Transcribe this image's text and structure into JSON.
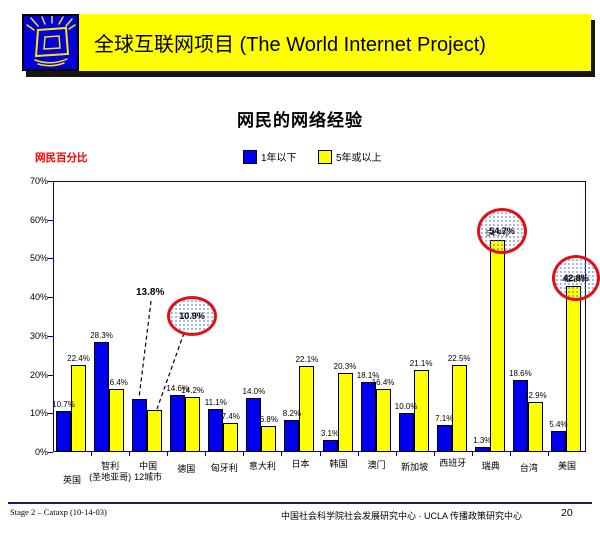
{
  "slide": {
    "header": {
      "title": "全球互联网项目 (The World Internet Project)",
      "logo_icon": "shining-screen-logo"
    },
    "footer": {
      "left": "Stage 2 – Cataxp (10-14-03)",
      "center": "中国社会科学院社会发展研究中心 · UCLA 传播政策研究中心",
      "page": "20"
    }
  },
  "chart_data": {
    "type": "bar",
    "title": "网民的网络经验",
    "ylabel": "网民百分比",
    "ylabel_color": "#FF0000",
    "ylim": [
      0,
      70
    ],
    "ytick_step": 10,
    "grid": false,
    "legend_position": "top",
    "axis_color": "#0000BB",
    "categories": [
      "英国",
      "智利 (圣地亚哥)",
      "中国 12城市",
      "德国",
      "匈牙利",
      "意大利",
      "日本",
      "韩国",
      "澳门",
      "新加坡",
      "西班牙",
      "瑞典",
      "台湾",
      "美国"
    ],
    "category_lines": [
      [
        "英国"
      ],
      [
        "智利",
        "(圣地亚哥)"
      ],
      [
        "中国",
        "12城市"
      ],
      [
        "德国"
      ],
      [
        "匈牙利"
      ],
      [
        "意大利"
      ],
      [
        "日本"
      ],
      [
        "韩国"
      ],
      [
        "澳门"
      ],
      [
        "新加坡"
      ],
      [
        "西班牙"
      ],
      [
        "瑞典"
      ],
      [
        "台湾"
      ],
      [
        "美国"
      ]
    ],
    "series": [
      {
        "name": "1年以下",
        "color": "#0000EE",
        "values": [
          10.7,
          28.3,
          13.8,
          14.6,
          11.1,
          14.0,
          8.2,
          3.1,
          18.1,
          10.0,
          7.1,
          1.3,
          18.6,
          5.4
        ]
      },
      {
        "name": "5年或以上",
        "color": "#FFFF00",
        "values": [
          22.4,
          16.4,
          10.9,
          14.2,
          7.4,
          6.8,
          22.1,
          20.3,
          16.4,
          21.1,
          22.5,
          54.7,
          12.9,
          42.8
        ]
      }
    ],
    "hidden_bar_labels": [
      2
    ],
    "annotations": {
      "bold_label": {
        "text": "13.8%",
        "points_to": "中国12城市 · 1年以下"
      },
      "circled": [
        {
          "text": "10.9%",
          "points_to": "中国12城市 · 5年或以上"
        },
        {
          "text": "54.7%",
          "points_to": "瑞典 · 5年或以上"
        },
        {
          "text": "42.8%",
          "points_to": "美国 · 5年或以上"
        }
      ]
    }
  }
}
